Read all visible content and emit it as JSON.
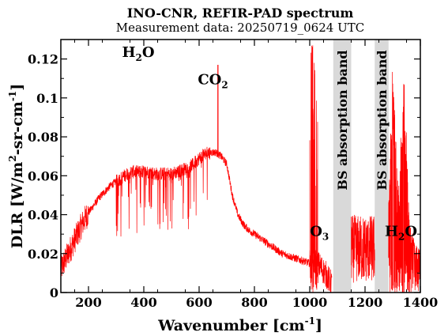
{
  "chart_data": {
    "type": "line",
    "title": "INO-CNR, REFIR-PAD spectrum",
    "subtitle": "Measurement data: 20250719_0624 UTC",
    "xlabel": "Wavenumber [cm",
    "xlabel_sup": "-1",
    "xlabel_end": "]",
    "ylabel": "DLR [W/m",
    "ylabel_sup1": "2",
    "ylabel_mid": "-sr-cm",
    "ylabel_sup2": "-1",
    "ylabel_end": "]",
    "xlim": [
      100,
      1400
    ],
    "ylim": [
      0,
      0.13
    ],
    "xticks": [
      200,
      400,
      600,
      800,
      1000,
      1200,
      1400
    ],
    "xtick_labels": [
      "200",
      "400",
      "600",
      "800",
      "1000",
      "1200",
      "1400"
    ],
    "yticks": [
      0,
      0.02,
      0.04,
      0.06,
      0.08,
      0.1,
      0.12
    ],
    "ytick_labels": [
      "0",
      "0.02",
      "0.04",
      "0.06",
      "0.08",
      "0.1",
      "0.12"
    ],
    "grid": false,
    "line_color": "#ff0000",
    "band_color": "#d9d9d9",
    "bands": [
      {
        "x_range": [
          1085,
          1150
        ],
        "label": "BS absorption band"
      },
      {
        "x_range": [
          1235,
          1285
        ],
        "label": "BS absorption band"
      }
    ],
    "annotations": [
      {
        "text": "H",
        "sub": "2",
        "rest": "O",
        "x": 380,
        "y": 0.121
      },
      {
        "text": "CO",
        "sub": "2",
        "rest": "",
        "x": 650,
        "y": 0.107
      },
      {
        "text": "O",
        "sub": "3",
        "rest": "",
        "x": 1035,
        "y": 0.029
      },
      {
        "text": "H",
        "sub": "2",
        "rest": "O",
        "x": 1330,
        "y": 0.029
      }
    ],
    "envelope": {
      "x": [
        100,
        120,
        140,
        160,
        180,
        200,
        220,
        240,
        260,
        280,
        300,
        320,
        340,
        360,
        380,
        400,
        420,
        440,
        460,
        480,
        500,
        520,
        540,
        560,
        580,
        600,
        620,
        640,
        660,
        680,
        700,
        720,
        740,
        760,
        780,
        800,
        820,
        840,
        860,
        880,
        900,
        920,
        940,
        960,
        980,
        1000,
        1020,
        1040,
        1060,
        1080
      ],
      "y": [
        0.012,
        0.018,
        0.024,
        0.03,
        0.036,
        0.041,
        0.045,
        0.049,
        0.052,
        0.055,
        0.057,
        0.059,
        0.061,
        0.062,
        0.062,
        0.062,
        0.062,
        0.061,
        0.061,
        0.061,
        0.061,
        0.062,
        0.063,
        0.064,
        0.066,
        0.069,
        0.071,
        0.072,
        0.072,
        0.07,
        0.066,
        0.05,
        0.04,
        0.035,
        0.032,
        0.03,
        0.028,
        0.026,
        0.024,
        0.022,
        0.02,
        0.019,
        0.018,
        0.017,
        0.016,
        0.015,
        0.016,
        0.013,
        0.009,
        0.004
      ]
    },
    "hf_segment": {
      "x": [
        1285,
        1300,
        1320,
        1340,
        1360,
        1380,
        1400
      ],
      "y": [
        0.05,
        0.12,
        0.05,
        0.12,
        0.04,
        0.025,
        0.022
      ]
    },
    "co2_peak": {
      "x": 668,
      "y": 0.117
    }
  }
}
